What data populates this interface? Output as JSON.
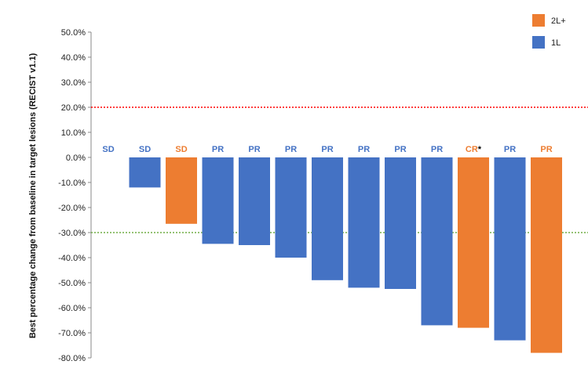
{
  "chart_data": {
    "type": "bar",
    "title": "",
    "xlabel": "",
    "ylabel": "Best percentage change from baseline in target lesions (RECIST v1.1)",
    "ylim": [
      -80,
      50
    ],
    "yticks": [
      "50.0%",
      "40.0%",
      "30.0%",
      "20.0%",
      "10.0%",
      "0.0%",
      "-10.0%",
      "-20.0%",
      "-30.0%",
      "-40.0%",
      "-50.0%",
      "-60.0%",
      "-70.0%",
      "-80.0%"
    ],
    "grid": false,
    "legend_position": "top-right",
    "legend": [
      {
        "name": "2L+",
        "color": "#ED7D31"
      },
      {
        "name": "1L",
        "color": "#4472C4"
      }
    ],
    "bars": [
      {
        "label": "SD",
        "value": 0,
        "line": "1L"
      },
      {
        "label": "SD",
        "value": -12,
        "line": "1L"
      },
      {
        "label": "SD",
        "value": -26.5,
        "line": "2L+"
      },
      {
        "label": "PR",
        "value": -34.5,
        "line": "1L"
      },
      {
        "label": "PR",
        "value": -35,
        "line": "1L"
      },
      {
        "label": "PR",
        "value": -40,
        "line": "1L"
      },
      {
        "label": "PR",
        "value": -49,
        "line": "1L"
      },
      {
        "label": "PR",
        "value": -52,
        "line": "1L"
      },
      {
        "label": "PR",
        "value": -52.5,
        "line": "1L"
      },
      {
        "label": "PR",
        "value": -67,
        "line": "1L"
      },
      {
        "label": "CR",
        "marker": "*",
        "value": -68,
        "line": "2L+"
      },
      {
        "label": "PR",
        "value": -73,
        "line": "1L"
      },
      {
        "label": "PR",
        "value": -78,
        "line": "2L+"
      }
    ],
    "reference_lines": [
      {
        "value": 20,
        "color": "#FF0000",
        "style": "dotted"
      },
      {
        "value": -30,
        "color": "#70AD47",
        "style": "dotted"
      }
    ],
    "colors": {
      "1L": "#4472C4",
      "2L+": "#ED7D31",
      "axis": "#888888"
    }
  }
}
